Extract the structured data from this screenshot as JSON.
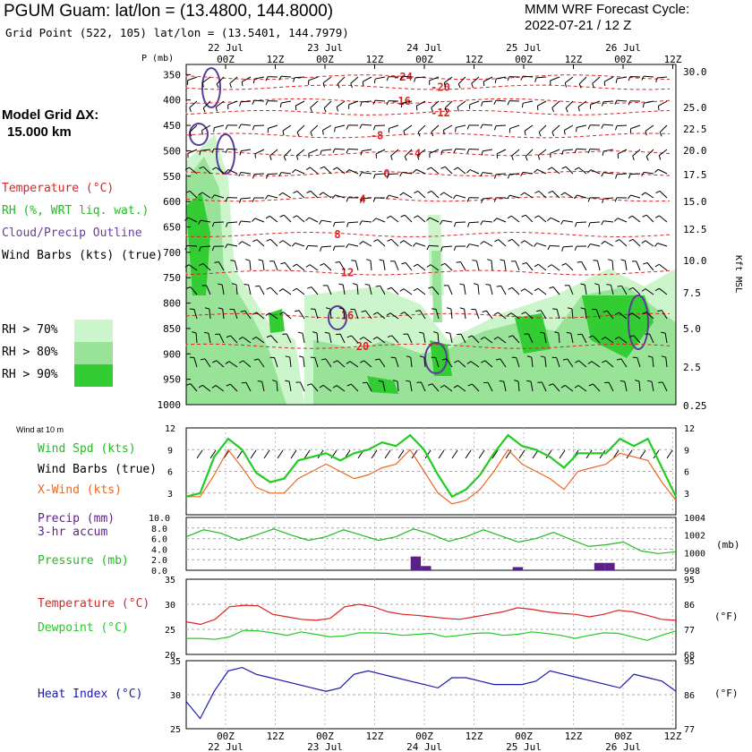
{
  "header": {
    "station": "PGUM Guam:  lat/lon = (13.4800, 144.8000)",
    "grid_point": "Grid Point (522, 105) lat/lon = (13.5401, 144.7979)",
    "cycle_label": "MMM WRF Forecast Cycle:",
    "cycle_value": "2022-07-21 / 12  Z"
  },
  "left_panel": {
    "model_grid_line1": "Model Grid ΔX:",
    "model_grid_line2": "15.000 km",
    "legend_temperature": "Temperature (°C)",
    "legend_rh": "RH (%, WRT liq. wat.)",
    "legend_cloud": "Cloud/Precip Outline",
    "legend_wind": "Wind Barbs (kts) (true)",
    "rh70": "RH > 70%",
    "rh80": "RH > 80%",
    "rh90": "RH > 90%",
    "wind_at_10m": "Wind at 10 m",
    "wind_spd": "Wind Spd (kts)",
    "wind_barbs": "Wind Barbs (true)",
    "x_wind": "X-Wind (kts)",
    "precip_line1": "Precip (mm)",
    "precip_line2": "3-hr accum",
    "pressure": "Pressure (mb)",
    "temperature": "Temperature (°C)",
    "dewpoint": "Dewpoint (°C)",
    "heat_index": "Heat Index (°C)"
  },
  "colors": {
    "temperature": "#dd2222",
    "rh70": "#ccf5cc",
    "rh80": "#99e399",
    "rh90": "#33cc33",
    "cloud": "#5b3a9e",
    "wind_speed": "#22cc22",
    "x_wind": "#ee6622",
    "pressure": "#22bb22",
    "precip": "#5b1f8a",
    "heat_index": "#1a1aaa",
    "dewpoint": "#22cc22"
  },
  "chart_data": [
    {
      "type": "heatmap",
      "panel": "cross-section",
      "xlabel": "",
      "ylabel": "P (mb)",
      "y2label": "Kft MSL",
      "x_ticks": [
        "00Z",
        "12Z",
        "00Z",
        "12Z",
        "00Z",
        "12Z",
        "00Z",
        "12Z",
        "00Z",
        "12Z"
      ],
      "x_dates": [
        "22 Jul",
        "23 Jul",
        "24 Jul",
        "25 Jul",
        "26 Jul"
      ],
      "pressure_ticks": [
        350,
        400,
        450,
        500,
        550,
        600,
        650,
        700,
        750,
        800,
        850,
        900,
        950,
        1000
      ],
      "kft_ticks": [
        "30.0",
        "25.0",
        "22.5",
        "20.0",
        "17.5",
        "15.0",
        "12.5",
        "10.0",
        "7.5",
        "5.0",
        "2.5",
        "0.25"
      ],
      "temperature_contours": [
        {
          "value": "-24",
          "pressure": 355
        },
        {
          "value": "-20",
          "pressure": 375
        },
        {
          "value": "-16",
          "pressure": 402
        },
        {
          "value": "-12",
          "pressure": 425
        },
        {
          "value": "-8",
          "pressure": 470
        },
        {
          "value": "-4",
          "pressure": 505
        },
        {
          "value": "0",
          "pressure": 545
        },
        {
          "value": "4",
          "pressure": 595
        },
        {
          "value": "8",
          "pressure": 665
        },
        {
          "value": "12",
          "pressure": 740
        },
        {
          "value": "16",
          "pressure": 825
        },
        {
          "value": "20",
          "pressure": 885
        }
      ]
    },
    {
      "type": "line",
      "panel": "wind",
      "ylim": [
        0,
        12
      ],
      "y_ticks": [
        "3",
        "6",
        "9",
        "12"
      ],
      "series": [
        {
          "name": "Wind Spd (kts)",
          "values": [
            2.5,
            3,
            8,
            10.5,
            9,
            5.8,
            4.5,
            5,
            7.5,
            8,
            8.5,
            7.5,
            8.5,
            9,
            10,
            9.5,
            11,
            9,
            5.5,
            2.5,
            3.5,
            5.5,
            8.5,
            11,
            9.5,
            9,
            8,
            6.5,
            8.5,
            8.5,
            8.5,
            10.5,
            9.5,
            10.5,
            6.5,
            2.5
          ]
        },
        {
          "name": "X-Wind (kts)",
          "values": [
            2.5,
            2.5,
            5.5,
            9,
            6.5,
            3.8,
            3,
            3,
            5,
            6,
            7,
            6,
            5,
            5.5,
            6.5,
            7,
            9,
            6,
            3,
            1.5,
            2,
            3.5,
            6,
            9,
            7,
            6,
            5,
            3.5,
            6,
            6.5,
            7,
            8.5,
            8,
            7.5,
            4.5,
            2
          ]
        }
      ]
    },
    {
      "type": "bar",
      "panel": "precip-pressure",
      "precip_ylim": [
        0,
        10
      ],
      "precip_ticks": [
        "0.0",
        "2.0",
        "4.0",
        "6.0",
        "8.0",
        "10.0"
      ],
      "precip_bars": [
        {
          "index": 22,
          "value": 2.6
        },
        {
          "index": 23,
          "value": 0.8
        },
        {
          "index": 32,
          "value": 0.6
        },
        {
          "index": 40,
          "value": 1.4
        },
        {
          "index": 41,
          "value": 1.4
        }
      ],
      "pressure_ylim": [
        998,
        1004
      ],
      "pressure_ticks": [
        "1004",
        "1002",
        "1000",
        "998"
      ],
      "series": [
        {
          "name": "Pressure (mb)",
          "values": [
            1001.8,
            1002.6,
            1002.2,
            1001.4,
            1002.0,
            1002.7,
            1002.0,
            1001.4,
            1001.8,
            1002.6,
            1002.0,
            1001.4,
            1001.8,
            1002.7,
            1002.1,
            1001.3,
            1001.8,
            1002.6,
            1001.9,
            1001.2,
            1001.6,
            1002.3,
            1001.5,
            1000.7,
            1000.9,
            1001.2,
            1000.2,
            999.9,
            1000.1
          ]
        }
      ]
    },
    {
      "type": "line",
      "panel": "temperature-dewpoint",
      "ylim": [
        20,
        35
      ],
      "y_ticks": [
        "20",
        "25",
        "30",
        "35"
      ],
      "y2_ticks": [
        "68",
        "77",
        "86",
        "95"
      ],
      "y2label": "(°F)",
      "series": [
        {
          "name": "Temperature (°C)",
          "values": [
            26.5,
            26.0,
            27.0,
            29.5,
            29.8,
            29.7,
            28.0,
            27.5,
            27.0,
            26.8,
            27.2,
            29.5,
            30.0,
            29.5,
            28.5,
            28.0,
            27.8,
            27.5,
            27.2,
            27.0,
            27.5,
            28.0,
            28.5,
            29.3,
            29.0,
            28.5,
            28.2,
            28.0,
            27.5,
            28.0,
            28.8,
            28.5,
            27.8,
            27.0,
            26.8
          ]
        },
        {
          "name": "Dewpoint (°C)",
          "values": [
            23.2,
            23.2,
            23.0,
            23.5,
            24.8,
            24.7,
            24.3,
            23.8,
            24.5,
            24.0,
            23.5,
            23.7,
            24.3,
            24.3,
            24.2,
            23.8,
            24.0,
            24.2,
            23.5,
            23.8,
            24.2,
            24.3,
            23.8,
            24.0,
            24.5,
            24.2,
            23.8,
            23.2,
            23.8,
            24.3,
            24.2,
            23.5,
            22.8,
            23.8,
            24.7
          ]
        }
      ]
    },
    {
      "type": "line",
      "panel": "heat-index",
      "ylim": [
        25,
        35
      ],
      "y_ticks": [
        "25",
        "30",
        "35"
      ],
      "y2_ticks": [
        "77",
        "86",
        "95"
      ],
      "y2label": "(°F)",
      "series": [
        {
          "name": "Heat Index (°C)",
          "values": [
            29,
            26.5,
            30.5,
            33.5,
            34,
            33,
            32.5,
            32,
            31.5,
            31,
            30.5,
            31,
            33,
            33.5,
            33,
            32.5,
            32,
            31.5,
            31,
            32.5,
            32.5,
            32,
            31.5,
            31.5,
            31.5,
            32,
            33.5,
            33,
            32.5,
            32,
            31.5,
            31,
            33,
            32.5,
            32,
            30.5
          ]
        }
      ]
    }
  ]
}
